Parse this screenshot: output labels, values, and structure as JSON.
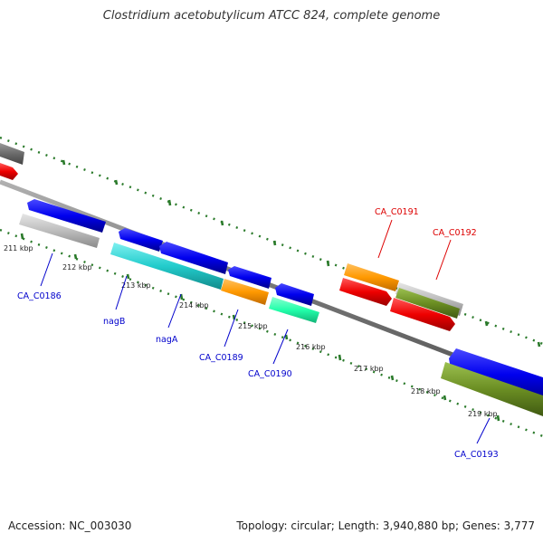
{
  "title": "Clostridium acetobutylicum ATCC 824, complete genome",
  "accession": "Accession: NC_003030",
  "summary": "Topology: circular; Length: 3,940,880 bp; Genes: 3,777",
  "colors": {
    "blue": "#0000ee",
    "grey": "#b0b0b0",
    "dark_grey": "#707070",
    "cyan": "#22cccc",
    "orange": "#ff9900",
    "mint": "#22ffaa",
    "red": "#ee0000",
    "olive": "#6b8e23",
    "tick_green": "#2a7a2a",
    "label_blue": "#0000cc",
    "label_red": "#dd0000"
  },
  "kbp_labels": [
    {
      "id": "211",
      "text": "211 kbp"
    },
    {
      "id": "212",
      "text": "212 kbp"
    },
    {
      "id": "213",
      "text": "213 kbp"
    },
    {
      "id": "214",
      "text": "214 kbp"
    },
    {
      "id": "215",
      "text": "215 kbp"
    },
    {
      "id": "216",
      "text": "216 kbp"
    },
    {
      "id": "217",
      "text": "217 kbp"
    },
    {
      "id": "218",
      "text": "218 kbp"
    },
    {
      "id": "219",
      "text": "219 kbp"
    }
  ],
  "gene_labels": [
    {
      "id": "ca_c0186",
      "text": "CA_C0186",
      "color": "#0000cc"
    },
    {
      "id": "nagb",
      "text": "nagB",
      "color": "#0000cc"
    },
    {
      "id": "naga",
      "text": "nagA",
      "color": "#0000cc"
    },
    {
      "id": "ca_c0189",
      "text": "CA_C0189",
      "color": "#0000cc"
    },
    {
      "id": "ca_c0190",
      "text": "CA_C0190",
      "color": "#0000cc"
    },
    {
      "id": "ca_c0191",
      "text": "CA_C0191",
      "color": "#dd0000"
    },
    {
      "id": "ca_c0192",
      "text": "CA_C0192",
      "color": "#dd0000"
    },
    {
      "id": "ca_c0193",
      "text": "CA_C0193",
      "color": "#0000cc"
    }
  ]
}
